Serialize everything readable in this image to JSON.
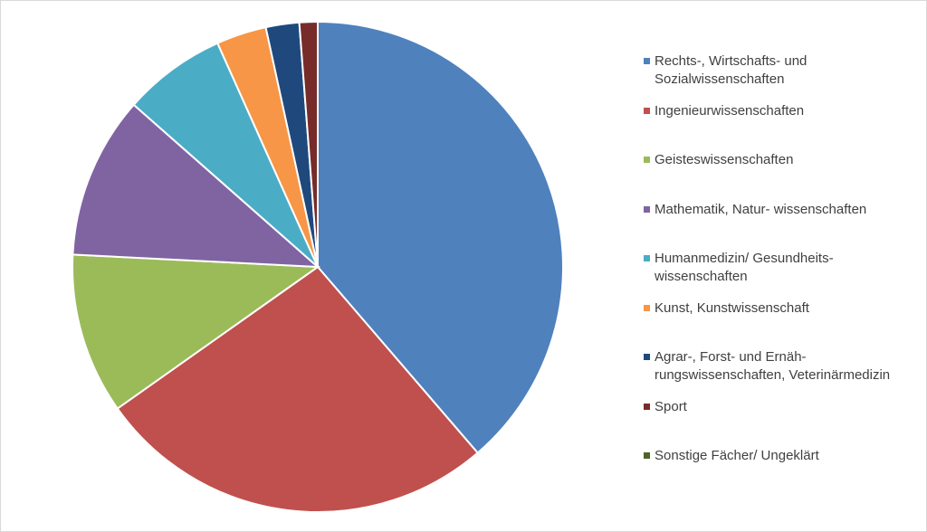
{
  "chart_data": {
    "type": "pie",
    "categories": [
      "Rechts-, Wirtschafts- und Sozialwissenschaften",
      "Ingenieurwissenschaften",
      "Geisteswissenschaften",
      "Mathematik, Natur- wissenschaften",
      "Humanmedizin/ Gesundheits- wissenschaften",
      "Kunst, Kunstwissenschaft",
      "Agrar-, Forst- und Ernäh- rungswissenschaften, Veterinärmedizin",
      "Sport",
      "Sonstige Fächer/ Ungeklärt"
    ],
    "values": [
      38.7,
      26.5,
      10.6,
      10.7,
      6.8,
      3.3,
      2.2,
      1.2,
      0
    ],
    "colors": [
      "#4f81bd",
      "#c0504d",
      "#9bbb59",
      "#8064a2",
      "#4bacc6",
      "#f79646",
      "#1f497d",
      "#772c2a",
      "#4f6228"
    ],
    "legend": "right"
  }
}
